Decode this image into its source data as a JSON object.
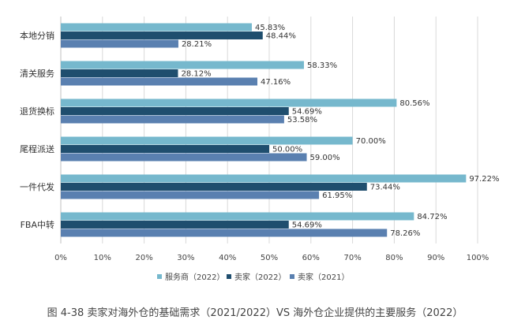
{
  "chart_data": {
    "type": "bar",
    "orientation": "horizontal",
    "categories": [
      "本地分销",
      "清关服务",
      "退货换标",
      "尾程派送",
      "一件代发",
      "FBA中转"
    ],
    "series": [
      {
        "name": "服务商（2022）",
        "color": "#76b8cd",
        "values": [
          45.83,
          58.33,
          80.56,
          70.0,
          97.22,
          84.72
        ],
        "labels": [
          "45.83%",
          "58.33%",
          "80.56%",
          "70.00%",
          "97.22%",
          "84.72%"
        ]
      },
      {
        "name": "卖家（2022）",
        "color": "#1f4e6e",
        "values": [
          48.44,
          28.12,
          54.69,
          50.0,
          73.44,
          54.69
        ],
        "labels": [
          "48.44%",
          "28.12%",
          "54.69%",
          "50.00%",
          "73.44%",
          "54.69%"
        ]
      },
      {
        "name": "卖家（2021）",
        "color": "#5a80b0",
        "values": [
          28.21,
          47.16,
          53.58,
          59.0,
          61.95,
          78.26
        ],
        "labels": [
          "28.21%",
          "47.16%",
          "53.58%",
          "59.00%",
          "61.95%",
          "78.26%"
        ]
      }
    ],
    "xlim": [
      0,
      100
    ],
    "xticks": [
      "0%",
      "10%",
      "20%",
      "30%",
      "40%",
      "50%",
      "60%",
      "70%",
      "80%",
      "90%",
      "100%"
    ],
    "grid": true,
    "legend_position": "bottom",
    "caption": "图 4-38  卖家对海外仓的基础需求（2021/2022）VS 海外仓企业提供的主要服务（2022）"
  }
}
